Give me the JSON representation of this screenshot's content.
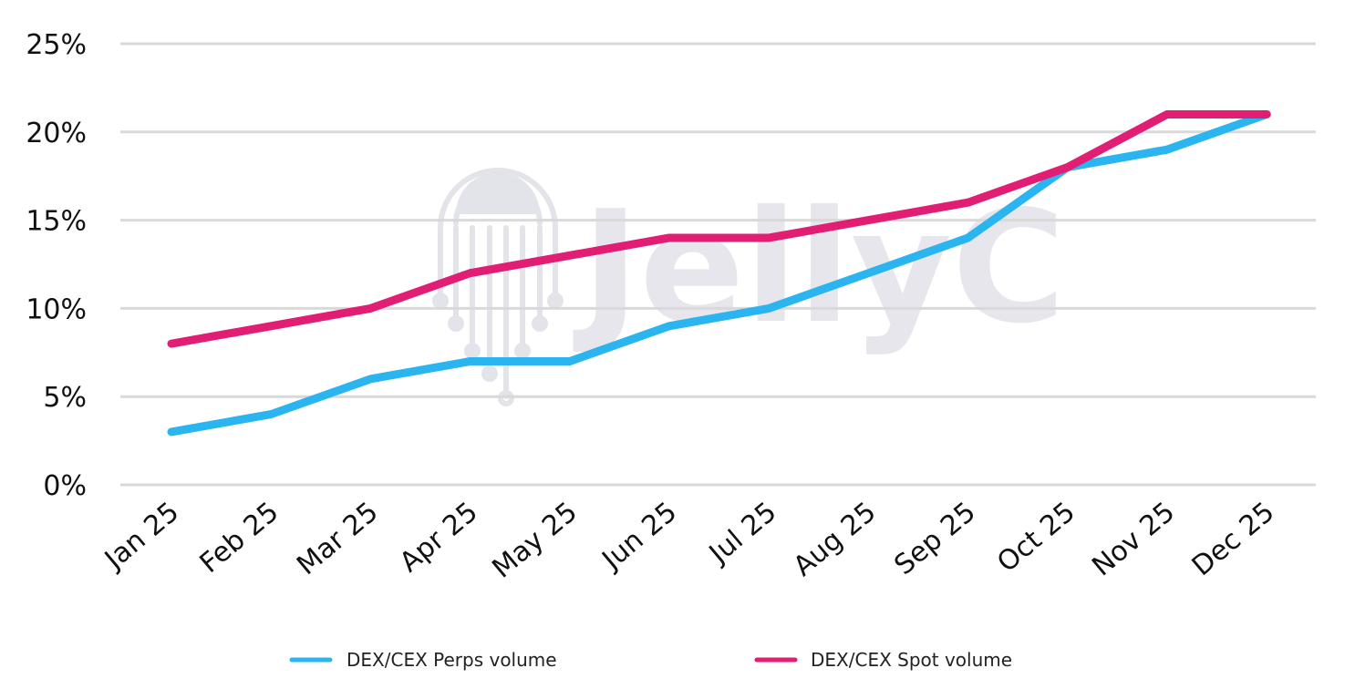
{
  "watermark": {
    "text": "JellyC",
    "color": "#e3e3ea"
  },
  "chart_data": {
    "type": "line",
    "categories": [
      "Jan 25",
      "Feb 25",
      "Mar 25",
      "Apr 25",
      "May 25",
      "Jun 25",
      "Jul 25",
      "Aug 25",
      "Sep 25",
      "Oct 25",
      "Nov 25",
      "Dec 25"
    ],
    "series": [
      {
        "name": "DEX/CEX Perps volume",
        "color": "#2bb5f0",
        "values": [
          3,
          4,
          6,
          7,
          7,
          9,
          10,
          12,
          14,
          18,
          19,
          21
        ]
      },
      {
        "name": "DEX/CEX Spot volume",
        "color": "#e11d74",
        "values": [
          8,
          9,
          10,
          12,
          13,
          14,
          14,
          15,
          16,
          18,
          21,
          21
        ]
      }
    ],
    "y_ticks": [
      "0%",
      "5%",
      "10%",
      "15%",
      "20%",
      "25%"
    ],
    "y_tick_values": [
      0,
      5,
      10,
      15,
      20,
      25
    ],
    "ylim": [
      0,
      25
    ],
    "grid": true,
    "gridline_color": "#d9d9d9",
    "legend_position": "bottom",
    "title": "",
    "xlabel": "",
    "ylabel": ""
  }
}
